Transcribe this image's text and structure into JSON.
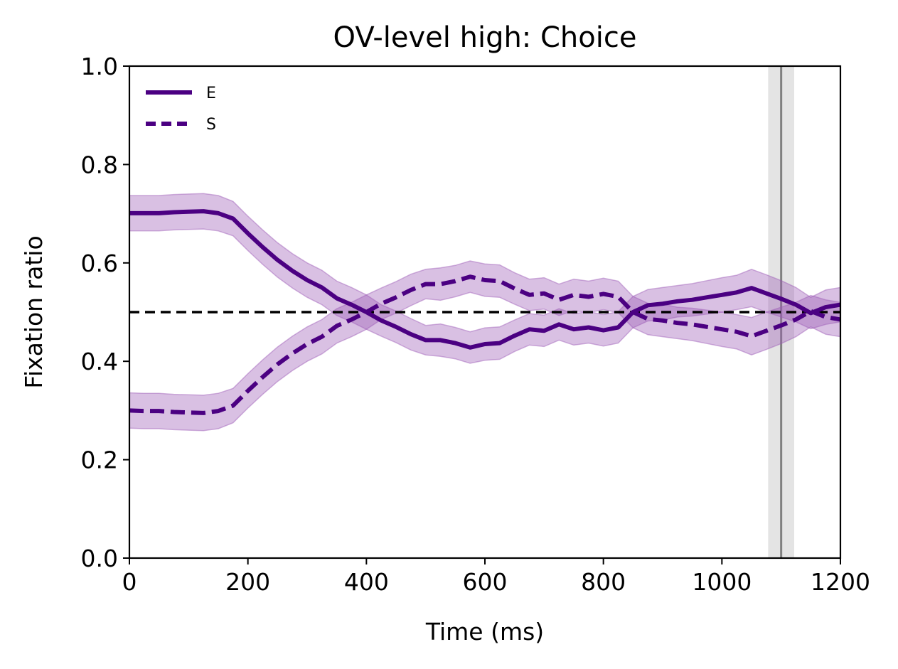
{
  "chart_data": {
    "type": "line",
    "title": "OV-level high: Choice",
    "xlabel": "Time (ms)",
    "ylabel": "Fixation ratio",
    "xlim": [
      0,
      1200
    ],
    "ylim": [
      0.0,
      1.0
    ],
    "xticks": [
      "0",
      "200",
      "400",
      "600",
      "800",
      "1000",
      "1200"
    ],
    "yticks": [
      "0.0",
      "0.2",
      "0.4",
      "0.6",
      "0.8",
      "1.0"
    ],
    "xtick_values": [
      0,
      200,
      400,
      600,
      800,
      1000,
      1200
    ],
    "ytick_values": [
      0.0,
      0.2,
      0.4,
      0.6,
      0.8,
      1.0
    ],
    "grid": false,
    "legend": {
      "placement": "top-left",
      "entries": [
        "E",
        "S"
      ]
    },
    "colors": {
      "series": "#4b0082",
      "band": "#9b59b6",
      "reference_line": "#000000",
      "event_line": "#808080",
      "event_band": "#d9d9d9"
    },
    "x": [
      0,
      25,
      50,
      75,
      100,
      125,
      150,
      175,
      200,
      225,
      250,
      275,
      300,
      325,
      350,
      375,
      400,
      425,
      450,
      475,
      500,
      525,
      550,
      575,
      600,
      625,
      650,
      675,
      700,
      725,
      750,
      775,
      800,
      825,
      850,
      875,
      900,
      925,
      950,
      975,
      1000,
      1025,
      1050,
      1075,
      1100,
      1125,
      1150,
      1175,
      1200
    ],
    "series": [
      {
        "name": "E",
        "linestyle": "solid",
        "values": [
          0.701,
          0.701,
          0.701,
          0.703,
          0.704,
          0.705,
          0.701,
          0.69,
          0.66,
          0.632,
          0.606,
          0.584,
          0.565,
          0.55,
          0.528,
          0.515,
          0.5,
          0.483,
          0.47,
          0.455,
          0.443,
          0.443,
          0.437,
          0.428,
          0.435,
          0.437,
          0.452,
          0.465,
          0.462,
          0.475,
          0.465,
          0.469,
          0.463,
          0.469,
          0.5,
          0.514,
          0.517,
          0.522,
          0.525,
          0.53,
          0.535,
          0.54,
          0.549,
          0.538,
          0.527,
          0.515,
          0.498,
          0.51,
          0.515
        ],
        "lower": [
          0.665,
          0.665,
          0.665,
          0.667,
          0.668,
          0.669,
          0.665,
          0.655,
          0.625,
          0.597,
          0.571,
          0.549,
          0.53,
          0.515,
          0.493,
          0.48,
          0.465,
          0.451,
          0.438,
          0.423,
          0.413,
          0.41,
          0.405,
          0.396,
          0.402,
          0.404,
          0.42,
          0.433,
          0.43,
          0.443,
          0.433,
          0.437,
          0.431,
          0.437,
          0.468,
          0.482,
          0.484,
          0.49,
          0.492,
          0.496,
          0.5,
          0.505,
          0.511,
          0.5,
          0.49,
          0.48,
          0.466,
          0.475,
          0.48
        ],
        "upper": [
          0.737,
          0.737,
          0.737,
          0.739,
          0.74,
          0.741,
          0.737,
          0.725,
          0.695,
          0.667,
          0.641,
          0.619,
          0.6,
          0.585,
          0.563,
          0.55,
          0.535,
          0.515,
          0.502,
          0.487,
          0.473,
          0.476,
          0.469,
          0.46,
          0.468,
          0.47,
          0.484,
          0.497,
          0.494,
          0.507,
          0.497,
          0.501,
          0.495,
          0.501,
          0.532,
          0.546,
          0.55,
          0.554,
          0.558,
          0.564,
          0.57,
          0.575,
          0.587,
          0.576,
          0.564,
          0.55,
          0.53,
          0.545,
          0.55
        ]
      },
      {
        "name": "S",
        "linestyle": "dashed",
        "values": [
          0.3,
          0.299,
          0.299,
          0.297,
          0.296,
          0.295,
          0.299,
          0.31,
          0.34,
          0.368,
          0.394,
          0.416,
          0.435,
          0.45,
          0.472,
          0.485,
          0.5,
          0.517,
          0.53,
          0.545,
          0.557,
          0.557,
          0.563,
          0.572,
          0.565,
          0.563,
          0.548,
          0.535,
          0.538,
          0.525,
          0.535,
          0.531,
          0.537,
          0.531,
          0.5,
          0.486,
          0.483,
          0.478,
          0.475,
          0.47,
          0.465,
          0.46,
          0.451,
          0.462,
          0.473,
          0.485,
          0.502,
          0.49,
          0.485
        ],
        "lower": [
          0.264,
          0.263,
          0.263,
          0.261,
          0.26,
          0.259,
          0.263,
          0.275,
          0.305,
          0.333,
          0.359,
          0.381,
          0.4,
          0.415,
          0.437,
          0.45,
          0.465,
          0.485,
          0.498,
          0.513,
          0.527,
          0.524,
          0.531,
          0.54,
          0.532,
          0.53,
          0.516,
          0.503,
          0.506,
          0.493,
          0.503,
          0.499,
          0.505,
          0.499,
          0.468,
          0.454,
          0.45,
          0.446,
          0.442,
          0.436,
          0.43,
          0.425,
          0.413,
          0.424,
          0.436,
          0.45,
          0.47,
          0.455,
          0.45
        ],
        "upper": [
          0.336,
          0.335,
          0.335,
          0.333,
          0.332,
          0.331,
          0.335,
          0.345,
          0.375,
          0.403,
          0.429,
          0.451,
          0.47,
          0.485,
          0.507,
          0.52,
          0.535,
          0.549,
          0.562,
          0.577,
          0.587,
          0.59,
          0.595,
          0.604,
          0.598,
          0.596,
          0.58,
          0.567,
          0.57,
          0.557,
          0.567,
          0.563,
          0.569,
          0.563,
          0.532,
          0.518,
          0.516,
          0.51,
          0.508,
          0.504,
          0.5,
          0.495,
          0.489,
          0.5,
          0.51,
          0.52,
          0.534,
          0.525,
          0.52
        ]
      }
    ],
    "reference_line": {
      "y": 0.5,
      "linestyle": "dashed"
    },
    "event_line": {
      "x": 1100,
      "band": [
        1078,
        1122
      ]
    }
  }
}
